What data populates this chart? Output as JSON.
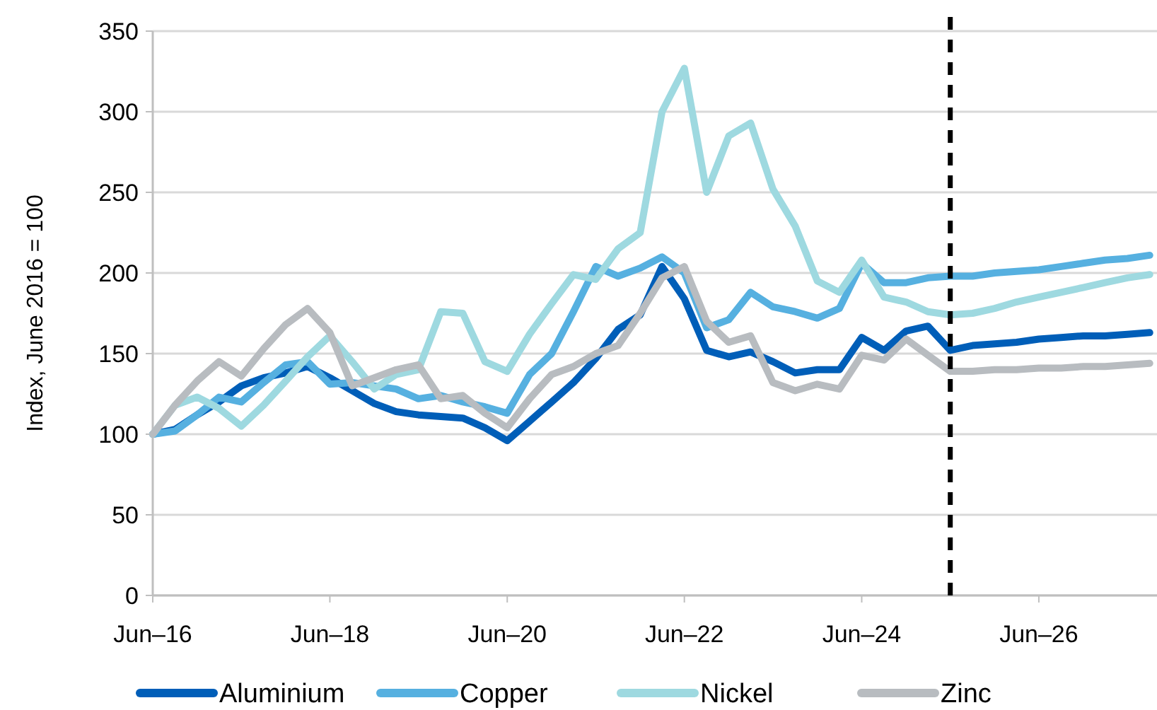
{
  "chart_data": {
    "type": "line",
    "ylabel": "Index, June 2016 = 100",
    "x": [
      "2016-06",
      "2016-09",
      "2016-12",
      "2017-03",
      "2017-06",
      "2017-09",
      "2017-12",
      "2018-03",
      "2018-06",
      "2018-09",
      "2018-12",
      "2019-03",
      "2019-06",
      "2019-09",
      "2019-12",
      "2020-03",
      "2020-06",
      "2020-09",
      "2020-12",
      "2021-03",
      "2021-06",
      "2021-09",
      "2021-12",
      "2022-03",
      "2022-06",
      "2022-09",
      "2022-12",
      "2023-03",
      "2023-06",
      "2023-09",
      "2023-12",
      "2024-03",
      "2024-06",
      "2024-09",
      "2024-12",
      "2025-03",
      "2025-06",
      "2025-09",
      "2025-12",
      "2026-03",
      "2026-06",
      "2026-09",
      "2026-12",
      "2027-03",
      "2027-06",
      "2027-09"
    ],
    "series": [
      {
        "name": "Aluminium",
        "color": "#005eb8",
        "values": [
          100,
          103,
          112,
          120,
          130,
          135,
          138,
          142,
          135,
          127,
          119,
          114,
          112,
          111,
          110,
          104,
          96,
          108,
          120,
          132,
          147,
          165,
          174,
          204,
          184,
          152,
          148,
          151,
          145,
          138,
          140,
          140,
          160,
          152,
          164,
          167,
          152,
          155,
          156,
          157,
          159,
          160,
          161,
          161,
          162,
          163
        ]
      },
      {
        "name": "Copper",
        "color": "#56b0e0",
        "values": [
          100,
          102,
          112,
          123,
          120,
          132,
          143,
          145,
          131,
          132,
          130,
          128,
          122,
          124,
          120,
          117,
          113,
          137,
          150,
          176,
          204,
          198,
          203,
          210,
          200,
          166,
          171,
          188,
          179,
          176,
          172,
          178,
          206,
          194,
          194,
          197,
          198,
          198,
          200,
          201,
          202,
          204,
          206,
          208,
          209,
          211
        ]
      },
      {
        "name": "Nickel",
        "color": "#9ed9e0",
        "values": [
          100,
          118,
          123,
          116,
          105,
          118,
          133,
          148,
          161,
          145,
          128,
          137,
          140,
          176,
          175,
          145,
          139,
          162,
          181,
          199,
          196,
          215,
          225,
          300,
          327,
          250,
          285,
          293,
          252,
          229,
          195,
          188,
          208,
          185,
          182,
          176,
          174,
          175,
          178,
          182,
          185,
          188,
          191,
          194,
          197,
          199
        ]
      },
      {
        "name": "Zinc",
        "color": "#b8bcc0",
        "values": [
          100,
          118,
          133,
          145,
          136,
          153,
          168,
          178,
          163,
          130,
          135,
          140,
          143,
          122,
          124,
          113,
          104,
          122,
          137,
          142,
          150,
          155,
          175,
          197,
          204,
          170,
          157,
          161,
          132,
          127,
          131,
          128,
          149,
          146,
          159,
          149,
          139,
          139,
          140,
          140,
          141,
          141,
          142,
          142,
          143,
          144
        ]
      }
    ],
    "xlim": [
      "2016-06",
      "2027-10"
    ],
    "xticks": [
      {
        "value": "2016-06",
        "label": "Jun–16"
      },
      {
        "value": "2018-06",
        "label": "Jun–18"
      },
      {
        "value": "2020-06",
        "label": "Jun–20"
      },
      {
        "value": "2022-06",
        "label": "Jun–22"
      },
      {
        "value": "2024-06",
        "label": "Jun–24"
      },
      {
        "value": "2026-06",
        "label": "Jun–26"
      }
    ],
    "ylim": [
      0,
      350
    ],
    "yticks": [
      0,
      50,
      100,
      150,
      200,
      250,
      300,
      350
    ],
    "ref_lines": [
      {
        "axis": "x",
        "value": "2025-06",
        "color": "#000000",
        "line_style": "dashed"
      }
    ],
    "grid": "y",
    "legend": "bottom",
    "marker": "none",
    "line_style": "solid"
  }
}
